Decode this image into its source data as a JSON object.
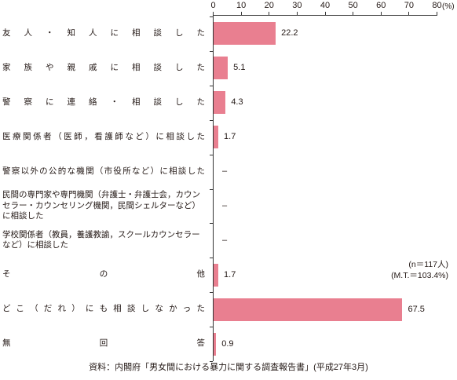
{
  "chart_data": {
    "type": "bar",
    "orientation": "horizontal",
    "categories": [
      "友人・知人に相談した",
      "家族や親戚に相談した",
      "警察に連絡・相談した",
      "医療関係者（医師，看護師など）に相談した",
      "警察以外の公的な機関（市役所など）に相談した",
      "民間の専門家や専門機関（弁護士・弁護士会，カウン\nセラー・カウンセリング機関，民間シェルターなど）\nに相談した",
      "学校関係者（教員，養護教諭，スクールカウンセラー\nなど）に相談した",
      "その他",
      "どこ（だれ）にも相談しなかった",
      "無回答"
    ],
    "values": [
      22.2,
      5.1,
      4.3,
      1.7,
      null,
      null,
      null,
      1.7,
      67.5,
      0.9
    ],
    "data_labels": [
      "22.2",
      "5.1",
      "4.3",
      "1.7",
      "–",
      "–",
      "–",
      "1.7",
      "67.5",
      "0.9"
    ],
    "x_ticks": [
      0,
      10,
      20,
      30,
      40,
      50,
      60,
      70,
      80
    ],
    "x_unit": "(%)",
    "xlim": [
      0,
      80
    ],
    "x_axis_position": "top",
    "grid": false,
    "annotations": [
      "(n＝117人)",
      "(M.T.＝103.4%)"
    ]
  },
  "source": "資料：内閣府「男女間における暴力に関する調査報告書」(平成27年3月)",
  "colors": {
    "bar": "#e97f90",
    "axis": "#333333",
    "text": "#231815"
  }
}
